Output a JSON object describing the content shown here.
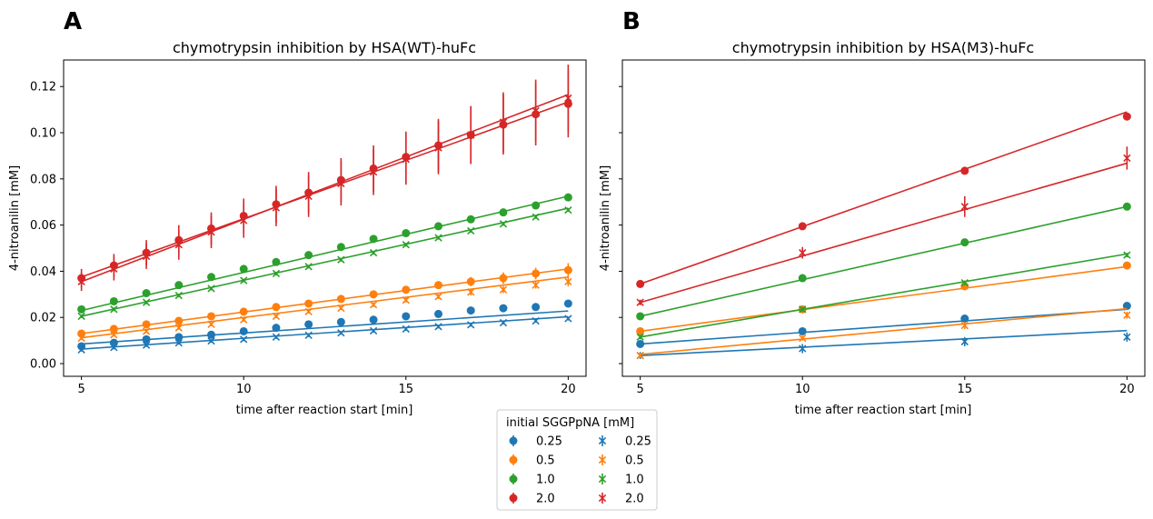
{
  "panels": {
    "A": {
      "letter": "A",
      "title": "chymotrypsin inhibition by HSA(WT)-huFc",
      "xlabel": "time after reaction start [min]",
      "ylabel": "4-nitroanilin [mM]"
    },
    "B": {
      "letter": "B",
      "title": "chymotrypsin inhibition by HSA(M3)-huFc",
      "xlabel": "time after reaction start [min]",
      "ylabel": "4-nitroanilin [mM]"
    }
  },
  "legend": {
    "title": "initial SGGPpNA  [mM]",
    "circle_entries": [
      "0.25",
      "0.5",
      "1.0",
      "2.0"
    ],
    "cross_entries": [
      "0.25",
      "0.5",
      "1.0",
      "2.0"
    ]
  },
  "chart_data": [
    {
      "type": "scatter",
      "panel": "A",
      "title": "chymotrypsin inhibition by HSA(WT)-huFc",
      "xlabel": "time after reaction start [min]",
      "ylabel": "4-nitroanilin [mM]",
      "xlim": [
        4.45,
        20.55
      ],
      "ylim": [
        -0.0055,
        0.1315
      ],
      "xticks": [
        "5",
        "10",
        "15",
        "20"
      ],
      "yticks": [
        "0.00",
        "0.02",
        "0.04",
        "0.06",
        "0.08",
        "0.10",
        "0.12"
      ],
      "x": [
        5,
        6,
        7,
        8,
        9,
        10,
        11,
        12,
        13,
        14,
        15,
        16,
        17,
        18,
        19,
        20
      ],
      "grid": false,
      "series": [
        {
          "name": "0.25",
          "marker": "circle",
          "color": "#1f77b4",
          "values": [
            0.0075,
            0.009,
            0.0105,
            0.0115,
            0.0125,
            0.014,
            0.0155,
            0.017,
            0.018,
            0.019,
            0.0205,
            0.0215,
            0.023,
            0.024,
            0.0245,
            0.026
          ],
          "error": [
            0.001,
            0.001,
            0.001,
            0.001,
            0.001,
            0.001,
            0.001,
            0.001,
            0.001,
            0.001,
            0.001,
            0.001,
            0.001,
            0.001,
            0.001,
            0.001
          ],
          "fit": [
            0.0085,
            0.0228
          ]
        },
        {
          "name": "0.5",
          "marker": "circle",
          "color": "#ff7f0e",
          "values": [
            0.013,
            0.015,
            0.017,
            0.0185,
            0.0205,
            0.0225,
            0.0245,
            0.026,
            0.028,
            0.03,
            0.032,
            0.034,
            0.0355,
            0.037,
            0.039,
            0.0405
          ],
          "error": [
            0.001,
            0.001,
            0.001,
            0.001,
            0.001,
            0.001,
            0.001,
            0.001,
            0.0012,
            0.0012,
            0.0015,
            0.0015,
            0.002,
            0.0025,
            0.0025,
            0.003
          ],
          "fit": [
            0.013,
            0.041
          ]
        },
        {
          "name": "1.0",
          "marker": "circle",
          "color": "#2ca02c",
          "values": [
            0.0235,
            0.027,
            0.0305,
            0.034,
            0.0375,
            0.041,
            0.044,
            0.047,
            0.0505,
            0.054,
            0.0565,
            0.0595,
            0.0625,
            0.0655,
            0.0685,
            0.072
          ],
          "error": [
            0.001,
            0.001,
            0.001,
            0.001,
            0.001,
            0.001,
            0.001,
            0.001,
            0.001,
            0.001,
            0.001,
            0.001,
            0.001,
            0.001,
            0.001,
            0.001
          ],
          "fit": [
            0.023,
            0.0725
          ]
        },
        {
          "name": "2.0",
          "marker": "circle",
          "color": "#d62728",
          "values": [
            0.037,
            0.0425,
            0.048,
            0.0535,
            0.0585,
            0.064,
            0.069,
            0.074,
            0.0795,
            0.0845,
            0.0895,
            0.0945,
            0.099,
            0.1035,
            0.108,
            0.1125
          ],
          "error": [
            0.004,
            0.005,
            0.0055,
            0.0065,
            0.007,
            0.0075,
            0.008,
            0.009,
            0.0095,
            0.01,
            0.011,
            0.0115,
            0.0125,
            0.013,
            0.0135,
            0.0145
          ],
          "fit": [
            0.0375,
            0.1133
          ]
        },
        {
          "name": "0.25",
          "marker": "cross",
          "color": "#1f77b4",
          "values": [
            0.006,
            0.007,
            0.008,
            0.009,
            0.0098,
            0.0105,
            0.0115,
            0.0123,
            0.0133,
            0.0142,
            0.015,
            0.016,
            0.0168,
            0.0177,
            0.0185,
            0.0195
          ],
          "error": [
            0.0008,
            0.0008,
            0.0008,
            0.0008,
            0.0008,
            0.0008,
            0.0008,
            0.0008,
            0.0008,
            0.0008,
            0.0008,
            0.0008,
            0.0008,
            0.0008,
            0.0008,
            0.0008
          ],
          "fit": [
            0.0063,
            0.0203
          ]
        },
        {
          "name": "0.5",
          "marker": "cross",
          "color": "#ff7f0e",
          "values": [
            0.011,
            0.0125,
            0.014,
            0.0155,
            0.017,
            0.019,
            0.0205,
            0.0225,
            0.024,
            0.0255,
            0.0275,
            0.029,
            0.031,
            0.032,
            0.034,
            0.0355
          ],
          "error": [
            0.0008,
            0.0008,
            0.0008,
            0.0008,
            0.0008,
            0.0008,
            0.0008,
            0.0008,
            0.0008,
            0.001,
            0.001,
            0.001,
            0.0015,
            0.0015,
            0.0015,
            0.002
          ],
          "fit": [
            0.0112,
            0.0375
          ]
        },
        {
          "name": "1.0",
          "marker": "cross",
          "color": "#2ca02c",
          "values": [
            0.0205,
            0.0235,
            0.0265,
            0.0295,
            0.0325,
            0.036,
            0.039,
            0.042,
            0.045,
            0.048,
            0.0515,
            0.0545,
            0.0575,
            0.0605,
            0.0635,
            0.0665
          ],
          "error": [
            0.0008,
            0.0008,
            0.0008,
            0.0008,
            0.0008,
            0.0008,
            0.0008,
            0.0008,
            0.0008,
            0.0008,
            0.0008,
            0.0008,
            0.0008,
            0.0008,
            0.0008,
            0.0008
          ],
          "fit": [
            0.0205,
            0.0673
          ]
        },
        {
          "name": "2.0",
          "marker": "cross",
          "color": "#d62728",
          "values": [
            0.0355,
            0.041,
            0.0465,
            0.0515,
            0.057,
            0.062,
            0.0675,
            0.0725,
            0.078,
            0.083,
            0.0885,
            0.0935,
            0.099,
            0.1045,
            0.1095,
            0.115
          ],
          "error": [
            0.004,
            0.005,
            0.0055,
            0.0065,
            0.007,
            0.0075,
            0.008,
            0.009,
            0.0095,
            0.01,
            0.011,
            0.0115,
            0.0125,
            0.013,
            0.0135,
            0.0145
          ],
          "fit": [
            0.0355,
            0.1165
          ]
        }
      ]
    },
    {
      "type": "scatter",
      "panel": "B",
      "title": "chymotrypsin inhibition by HSA(M3)-huFc",
      "xlabel": "time after reaction start [min]",
      "ylabel": "4-nitroanilin [mM]",
      "xlim": [
        4.45,
        20.55
      ],
      "ylim": [
        -0.0055,
        0.1315
      ],
      "xticks": [
        "5",
        "10",
        "15",
        "20"
      ],
      "yticks": [],
      "x": [
        5,
        10,
        15,
        20
      ],
      "grid": false,
      "series": [
        {
          "name": "0.25",
          "marker": "circle",
          "color": "#1f77b4",
          "values": [
            0.0085,
            0.014,
            0.0195,
            0.025
          ],
          "error": [
            0.0008,
            0.0008,
            0.0008,
            0.0008
          ],
          "fit": [
            0.0085,
            0.0235
          ]
        },
        {
          "name": "0.5",
          "marker": "circle",
          "color": "#ff7f0e",
          "values": [
            0.014,
            0.0235,
            0.0335,
            0.0425
          ],
          "error": [
            0.0008,
            0.0008,
            0.0008,
            0.0008
          ],
          "fit": [
            0.014,
            0.042
          ]
        },
        {
          "name": "1.0",
          "marker": "circle",
          "color": "#2ca02c",
          "values": [
            0.0205,
            0.037,
            0.0525,
            0.068
          ],
          "error": [
            0.0008,
            0.0008,
            0.0008,
            0.0008
          ],
          "fit": [
            0.0205,
            0.068
          ]
        },
        {
          "name": "2.0",
          "marker": "circle",
          "color": "#d62728",
          "values": [
            0.0345,
            0.0595,
            0.0835,
            0.107
          ],
          "error": [
            0.0008,
            0.0008,
            0.0008,
            0.0008
          ],
          "fit": [
            0.0345,
            0.109
          ]
        },
        {
          "name": "0.25",
          "marker": "cross",
          "color": "#1f77b4",
          "values": [
            0.0035,
            0.0065,
            0.0095,
            0.0115
          ],
          "error": [
            0.0015,
            0.002,
            0.002,
            0.002
          ],
          "fit": [
            0.0035,
            0.0143
          ]
        },
        {
          "name": "0.5",
          "marker": "cross",
          "color": "#ff7f0e",
          "values": [
            0.0035,
            0.011,
            0.0165,
            0.021
          ],
          "error": [
            0.001,
            0.001,
            0.0015,
            0.0015
          ],
          "fit": [
            0.004,
            0.0238
          ]
        },
        {
          "name": "1.0",
          "marker": "cross",
          "color": "#2ca02c",
          "values": [
            0.0115,
            0.0235,
            0.035,
            0.047
          ],
          "error": [
            0.001,
            0.001,
            0.001,
            0.001
          ],
          "fit": [
            0.0115,
            0.0475
          ]
        },
        {
          "name": "2.0",
          "marker": "cross",
          "color": "#d62728",
          "values": [
            0.0265,
            0.048,
            0.068,
            0.089
          ],
          "error": [
            0.0012,
            0.0025,
            0.0045,
            0.005
          ],
          "fit": [
            0.0265,
            0.0868
          ]
        }
      ]
    }
  ]
}
